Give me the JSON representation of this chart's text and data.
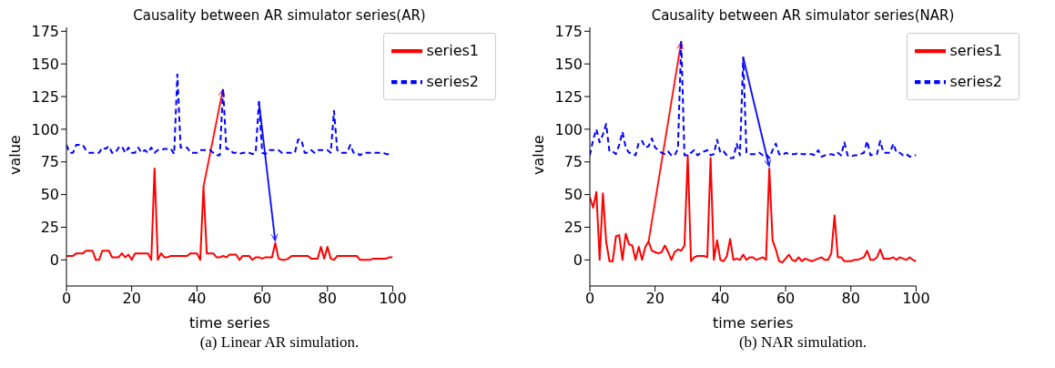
{
  "chart_data": [
    {
      "type": "line",
      "title": "Causality between AR simulator series(AR)",
      "xlabel": "time series",
      "ylabel": "value",
      "x": [
        0,
        1,
        2,
        3,
        4,
        5,
        6,
        7,
        8,
        9,
        10,
        11,
        12,
        13,
        14,
        15,
        16,
        17,
        18,
        19,
        20,
        21,
        22,
        23,
        24,
        25,
        26,
        27,
        28,
        29,
        30,
        31,
        32,
        33,
        34,
        35,
        36,
        37,
        38,
        39,
        40,
        41,
        42,
        43,
        44,
        45,
        46,
        47,
        48,
        49,
        50,
        51,
        52,
        53,
        54,
        55,
        56,
        57,
        58,
        59,
        60,
        61,
        62,
        63,
        64,
        65,
        66,
        67,
        68,
        69,
        70,
        71,
        72,
        73,
        74,
        75,
        76,
        77,
        78,
        79,
        80,
        81,
        82,
        83,
        84,
        85,
        86,
        87,
        88,
        89,
        90,
        91,
        92,
        93,
        94,
        95,
        96,
        97,
        98,
        99,
        100
      ],
      "series": [
        {
          "name": "series1",
          "color": "#ff0000",
          "line_style": "solid",
          "values": [
            3,
            3,
            3,
            5,
            5,
            5,
            7,
            7,
            7,
            0,
            0,
            7,
            7,
            7,
            2,
            2,
            2,
            5,
            2,
            4,
            0,
            5,
            5,
            5,
            5,
            5,
            0,
            70,
            0,
            5,
            2,
            2,
            3,
            3,
            3,
            3,
            3,
            3,
            5,
            5,
            5,
            0,
            56,
            5,
            5,
            5,
            2,
            2,
            3,
            2,
            4,
            4,
            4,
            0,
            3,
            3,
            3,
            0,
            2,
            2,
            1,
            2,
            2,
            2,
            13,
            1,
            0,
            0,
            1,
            3,
            3,
            3,
            3,
            3,
            3,
            1,
            1,
            1,
            10,
            1,
            10,
            1,
            0,
            3,
            3,
            3,
            3,
            3,
            3,
            3,
            0,
            0,
            0,
            0,
            1,
            1,
            1,
            1,
            1,
            2,
            2
          ]
        },
        {
          "name": "series2",
          "color": "#0000ff",
          "line_style": "dashed",
          "values": [
            88,
            82,
            82,
            88,
            88,
            88,
            84,
            82,
            82,
            82,
            82,
            86,
            85,
            87,
            82,
            82,
            86,
            87,
            82,
            86,
            82,
            82,
            86,
            82,
            84,
            82,
            86,
            82,
            84,
            84,
            85,
            85,
            85,
            81,
            142,
            86,
            86,
            86,
            82,
            82,
            82,
            84,
            84,
            84,
            84,
            82,
            80,
            80,
            131,
            85,
            85,
            82,
            82,
            81,
            82,
            82,
            82,
            81,
            82,
            121,
            82,
            81,
            84,
            84,
            84,
            84,
            82,
            82,
            82,
            82,
            82,
            92,
            92,
            82,
            82,
            84,
            82,
            84,
            84,
            84,
            84,
            82,
            114,
            84,
            82,
            82,
            82,
            88,
            82,
            82,
            80,
            82,
            82,
            82,
            82,
            82,
            82,
            82,
            81,
            81,
            81
          ]
        }
      ],
      "xlim": [
        0,
        100
      ],
      "xticks": [
        0,
        20,
        40,
        60,
        80,
        100
      ],
      "ylim": [
        -20,
        178
      ],
      "yticks": [
        0,
        25,
        50,
        75,
        100,
        125,
        150,
        175
      ],
      "grid": false,
      "legend": "top right",
      "marker": "none",
      "annotations": [
        "(a)  Linear AR simulation."
      ]
    },
    {
      "type": "line",
      "title": "Causality between AR simulator series(NAR)",
      "xlabel": "time series",
      "ylabel": "value",
      "x": [
        0,
        1,
        2,
        3,
        4,
        5,
        6,
        7,
        8,
        9,
        10,
        11,
        12,
        13,
        14,
        15,
        16,
        17,
        18,
        19,
        20,
        21,
        22,
        23,
        24,
        25,
        26,
        27,
        28,
        29,
        30,
        31,
        32,
        33,
        34,
        35,
        36,
        37,
        38,
        39,
        40,
        41,
        42,
        43,
        44,
        45,
        46,
        47,
        48,
        49,
        50,
        51,
        52,
        53,
        54,
        55,
        56,
        57,
        58,
        59,
        60,
        61,
        62,
        63,
        64,
        65,
        66,
        67,
        68,
        69,
        70,
        71,
        72,
        73,
        74,
        75,
        76,
        77,
        78,
        79,
        80,
        81,
        82,
        83,
        84,
        85,
        86,
        87,
        88,
        89,
        90,
        91,
        92,
        93,
        94,
        95,
        96,
        97,
        98,
        99,
        100
      ],
      "series": [
        {
          "name": "series1",
          "color": "#ff0000",
          "line_style": "solid",
          "values": [
            48,
            40,
            52,
            0,
            51,
            14,
            -1,
            -1,
            18,
            19,
            0,
            20,
            12,
            11,
            0,
            10,
            0,
            10,
            14,
            7,
            6,
            5,
            6,
            11,
            6,
            0,
            6,
            8,
            7,
            11,
            80,
            -1,
            2,
            3,
            3,
            3,
            2,
            78,
            0,
            15,
            0,
            -1,
            3,
            16,
            0,
            1,
            0,
            4,
            0,
            2,
            2,
            0,
            1,
            2,
            0,
            70,
            15,
            8,
            -1,
            -2,
            1,
            4,
            0,
            -1,
            2,
            -1,
            1,
            0,
            -1,
            0,
            1,
            2,
            0,
            0,
            5,
            34,
            2,
            2,
            -1,
            -1,
            -1,
            0,
            0,
            1,
            2,
            7,
            0,
            0,
            2,
            8,
            1,
            1,
            1,
            2,
            0,
            2,
            1,
            0,
            2,
            0,
            -1
          ]
        },
        {
          "name": "series2",
          "color": "#0000ff",
          "line_style": "dashed",
          "values": [
            80,
            92,
            100,
            90,
            96,
            104,
            83,
            83,
            81,
            88,
            98,
            86,
            82,
            82,
            80,
            90,
            91,
            86,
            87,
            93,
            86,
            84,
            82,
            81,
            83,
            80,
            80,
            85,
            168,
            80,
            80,
            82,
            84,
            80,
            82,
            83,
            84,
            80,
            81,
            92,
            82,
            83,
            80,
            78,
            78,
            89,
            80,
            155,
            82,
            81,
            81,
            81,
            82,
            80,
            81,
            78,
            84,
            89,
            81,
            80,
            82,
            81,
            81,
            81,
            82,
            81,
            81,
            81,
            81,
            80,
            84,
            79,
            80,
            80,
            81,
            80,
            82,
            80,
            90,
            80,
            79,
            80,
            80,
            81,
            82,
            91,
            80,
            81,
            81,
            91,
            82,
            82,
            82,
            89,
            82,
            82,
            80,
            81,
            79,
            80,
            80
          ]
        }
      ],
      "xlim": [
        0,
        100
      ],
      "xticks": [
        0,
        20,
        40,
        60,
        80,
        100
      ],
      "ylim": [
        -20,
        178
      ],
      "yticks": [
        0,
        25,
        50,
        75,
        100,
        125,
        150,
        175
      ],
      "grid": false,
      "legend": "top right",
      "marker": "none",
      "annotations": [
        "(b)  NAR simulation."
      ]
    }
  ]
}
